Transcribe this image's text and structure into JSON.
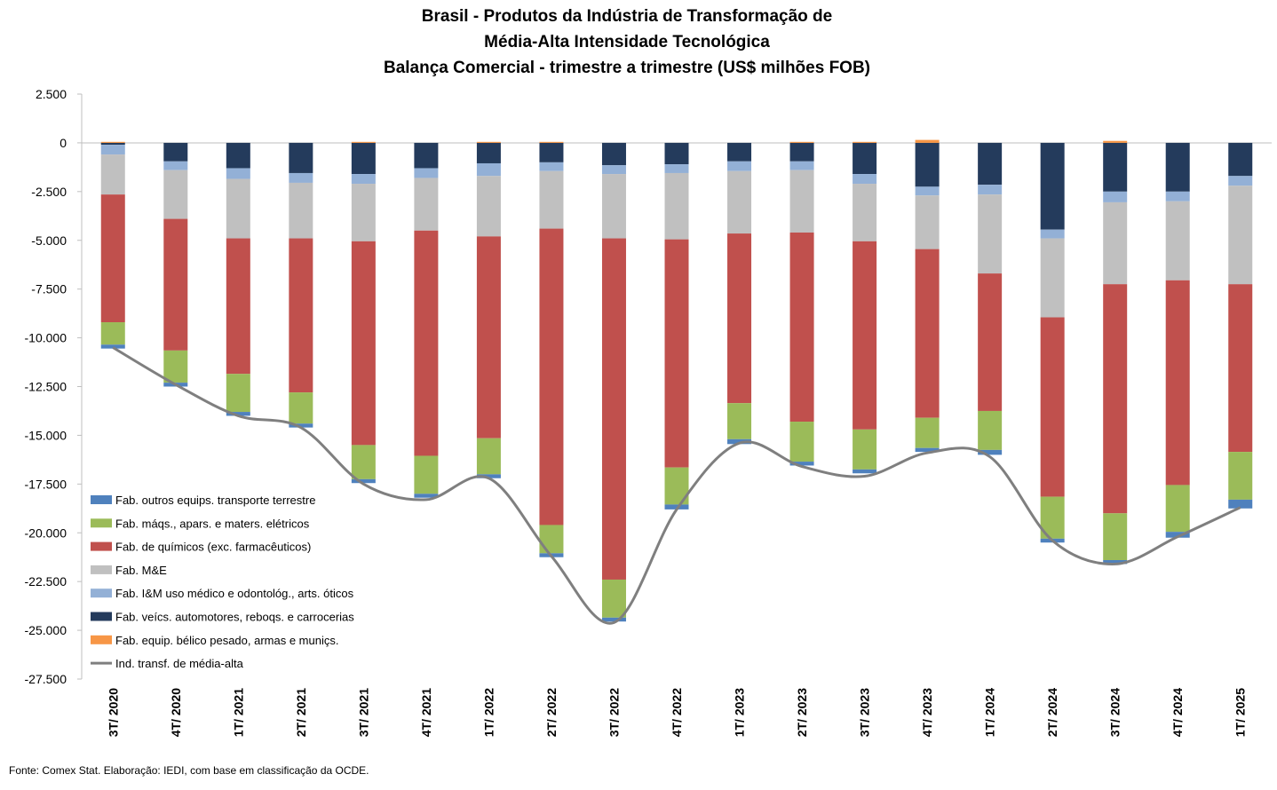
{
  "chart_data": {
    "type": "bar",
    "stacked": true,
    "title_lines": [
      "Brasil - Produtos da Indústria de Transformação de",
      "Média-Alta Intensidade Tecnológica",
      "Balança Comercial - trimestre a trimestre (US$ milhões FOB)"
    ],
    "source": "Fonte: Comex Stat. Elaboração: IEDI, com base em classificação da OCDE.",
    "ylim": [
      -27500,
      2500
    ],
    "yticks": [
      2500,
      0,
      -2500,
      -5000,
      -7500,
      -10000,
      -12500,
      -15000,
      -17500,
      -20000,
      -22500,
      -25000,
      -27500
    ],
    "ytick_labels": [
      "2.500",
      "0",
      "-2.500",
      "-5.000",
      "-7.500",
      "-10.000",
      "-12.500",
      "-15.000",
      "-17.500",
      "-20.000",
      "-22.500",
      "-25.000",
      "-27.500"
    ],
    "categories": [
      "3T/ 2020",
      "4T/ 2020",
      "1T/ 2021",
      "2T/ 2021",
      "3T/ 2021",
      "4T/ 2021",
      "1T/ 2022",
      "2T/ 2022",
      "3T/ 2022",
      "4T/ 2022",
      "1T/ 2023",
      "2T/ 2023",
      "3T/ 2023",
      "4T/ 2023",
      "1T/ 2024",
      "2T/ 2024",
      "3T/ 2024",
      "4T/ 2024",
      "1T/ 2025"
    ],
    "grid": false,
    "legend_position": "bottom-left",
    "series": [
      {
        "name": "Fab. veícs. automotores, reboqs. e carrocerias",
        "color": "#243b5c",
        "values": [
          -100,
          -950,
          -1300,
          -1550,
          -1600,
          -1300,
          -1050,
          -1000,
          -1150,
          -1100,
          -950,
          -950,
          -1600,
          -2250,
          -2150,
          -4450,
          -2500,
          -2500,
          -1700
        ]
      },
      {
        "name": "Fab. I&M uso médico e odontológ., arts. óticos",
        "color": "#93b0d6",
        "values": [
          -500,
          -450,
          -550,
          -500,
          -500,
          -500,
          -650,
          -450,
          -450,
          -450,
          -500,
          -450,
          -500,
          -450,
          -500,
          -450,
          -550,
          -500,
          -500
        ]
      },
      {
        "name": "Fab. M&E",
        "color": "#c0c0c0",
        "values": [
          -2050,
          -2500,
          -3050,
          -2850,
          -2950,
          -2700,
          -3100,
          -2950,
          -3300,
          -3400,
          -3200,
          -3200,
          -2950,
          -2750,
          -4050,
          -4050,
          -4200,
          -4050,
          -5050
        ]
      },
      {
        "name": "Fab. de químicos (exc. farmacêuticos)",
        "color": "#c0504d",
        "values": [
          -6550,
          -6750,
          -6950,
          -7900,
          -10450,
          -11550,
          -10350,
          -15200,
          -17500,
          -11700,
          -8700,
          -9700,
          -9650,
          -8650,
          -7050,
          -9200,
          -11750,
          -10500,
          -8600
        ]
      },
      {
        "name": "Fab. máqs., apars. e maters. elétricos",
        "color": "#9bbb59",
        "values": [
          -1150,
          -1650,
          -1950,
          -1600,
          -1750,
          -1950,
          -1850,
          -1450,
          -1950,
          -1900,
          -1850,
          -2050,
          -2050,
          -1550,
          -2000,
          -2150,
          -2400,
          -2400,
          -2450
        ]
      },
      {
        "name": "Fab. outros equips. transporte terrestre",
        "color": "#4f81bd",
        "values": [
          -200,
          -200,
          -200,
          -200,
          -200,
          -200,
          -200,
          -200,
          -200,
          -250,
          -250,
          -200,
          -200,
          -200,
          -250,
          -200,
          -200,
          -300,
          -450
        ]
      },
      {
        "name": "Fab. equip. bélico pesado, armas e muniçs.",
        "color": "#f79646",
        "values": [
          50,
          0,
          0,
          0,
          50,
          0,
          50,
          50,
          0,
          0,
          0,
          50,
          50,
          150,
          0,
          0,
          100,
          0,
          0
        ]
      }
    ],
    "line_series": {
      "name": "Ind. transf. de média-alta",
      "color": "#7f7f7f",
      "values": [
        -10500,
        -12400,
        -14000,
        -14600,
        -17500,
        -18300,
        -17200,
        -21200,
        -24600,
        -18800,
        -15400,
        -16600,
        -17100,
        -15900,
        -16100,
        -20400,
        -21600,
        -20200,
        -18700
      ]
    },
    "legend_order": [
      "Fab. outros equips. transporte terrestre",
      "Fab. máqs., apars. e maters. elétricos",
      "Fab. de químicos (exc. farmacêuticos)",
      "Fab. M&E",
      "Fab. I&M uso médico e odontológ., arts. óticos",
      "Fab. veícs. automotores, reboqs. e carrocerias",
      "Fab. equip. bélico pesado, armas e muniçs.",
      "Ind. transf. de média-alta"
    ]
  }
}
